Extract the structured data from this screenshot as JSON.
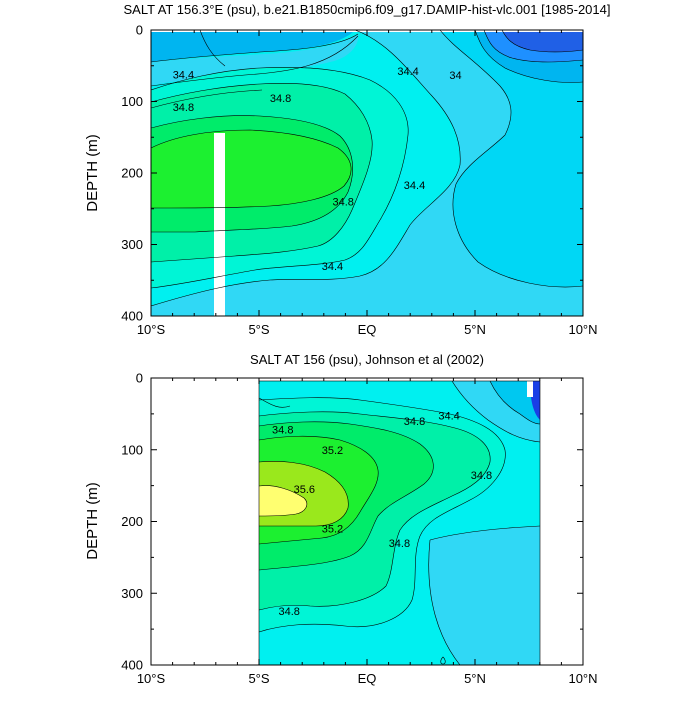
{
  "chart_data": [
    {
      "type": "contour",
      "title": "SALT AT 156.3°E (psu), b.e21.B1850cmip6.f09_g17.DAMIP-hist-vlc.001 [1985-2014]",
      "ylabel": "DEPTH (m)",
      "xlim": [
        -10,
        10
      ],
      "ylim": [
        400,
        0
      ],
      "x_ticks": [
        -10,
        -5,
        0,
        5,
        10
      ],
      "x_tick_labels": [
        "10°S",
        "5°S",
        "EQ",
        "5°N",
        "10°N"
      ],
      "y_ticks": [
        0,
        100,
        200,
        300,
        400
      ],
      "y_tick_labels": [
        "0",
        "100",
        "200",
        "300",
        "400"
      ],
      "missing_data_bands": [
        {
          "lat_min": -7.0,
          "lat_max": -6.5,
          "depth_min": 145,
          "depth_max": 400
        }
      ],
      "contour_labels": [
        {
          "text": "34.4",
          "lat": -8.5,
          "depth": 62
        },
        {
          "text": "34.8",
          "lat": -8.5,
          "depth": 108
        },
        {
          "text": "34.8",
          "lat": -4.0,
          "depth": 95
        },
        {
          "text": "34.4",
          "lat": 1.9,
          "depth": 57
        },
        {
          "text": "34",
          "lat": 4.1,
          "depth": 63
        },
        {
          "text": "34.8",
          "lat": -1.1,
          "depth": 240
        },
        {
          "text": "34.4",
          "lat": 2.2,
          "depth": 217
        },
        {
          "text": "34.4",
          "lat": -1.6,
          "depth": 330
        }
      ]
    },
    {
      "type": "contour",
      "title": "SALT AT 156 (psu), Johnson et al (2002)",
      "ylabel": "DEPTH (m)",
      "xlim": [
        -10,
        10
      ],
      "ylim": [
        400,
        0
      ],
      "x_ticks": [
        -10,
        -5,
        0,
        5,
        10
      ],
      "x_tick_labels": [
        "10°S",
        "5°S",
        "EQ",
        "5°N",
        "10°N"
      ],
      "y_ticks": [
        0,
        100,
        200,
        300,
        400
      ],
      "y_tick_labels": [
        "0",
        "100",
        "200",
        "300",
        "400"
      ],
      "data_extent_lat": [
        -5,
        8
      ],
      "contour_labels": [
        {
          "text": "34.8",
          "lat": -3.9,
          "depth": 72
        },
        {
          "text": "35.2",
          "lat": -1.6,
          "depth": 100
        },
        {
          "text": "35.6",
          "lat": -2.9,
          "depth": 155
        },
        {
          "text": "34.8",
          "lat": 2.2,
          "depth": 60
        },
        {
          "text": "34.4",
          "lat": 3.8,
          "depth": 52
        },
        {
          "text": "34.8",
          "lat": 5.3,
          "depth": 135
        },
        {
          "text": "35.2",
          "lat": -1.6,
          "depth": 210
        },
        {
          "text": "34.8",
          "lat": 1.5,
          "depth": 230
        },
        {
          "text": "34.8",
          "lat": -3.6,
          "depth": 325
        }
      ]
    }
  ],
  "colors": {
    "low_deep_blue": "#1a3fe6",
    "low_blue": "#1e90ff",
    "blue_mid": "#00b5f0",
    "cyan_light": "#30d8f5",
    "cyan": "#00f0f0",
    "aqua": "#00f5d6",
    "sea_green": "#00f0a8",
    "green": "#00ec6a",
    "bright_green": "#1cf030",
    "lime": "#9ae81c",
    "yellow": "#ffff70"
  }
}
